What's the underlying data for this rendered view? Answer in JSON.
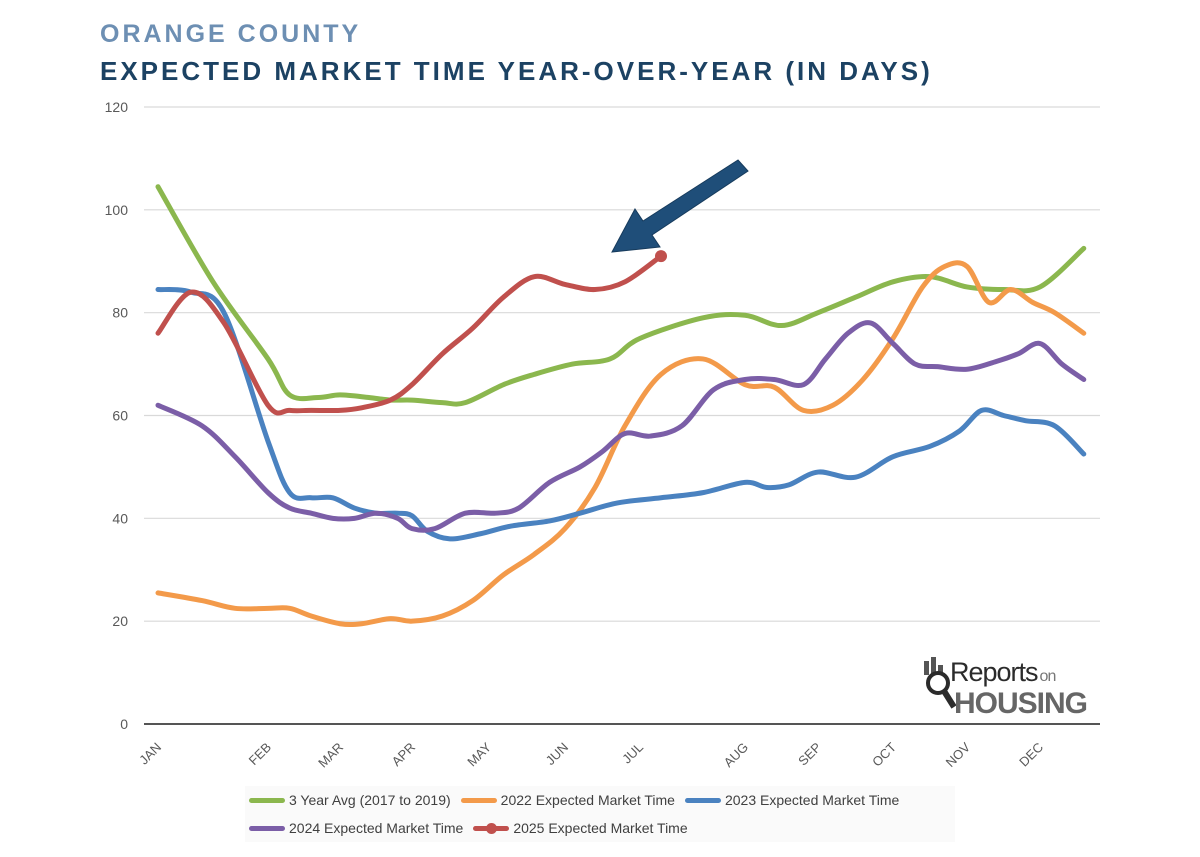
{
  "header": {
    "line1": "ORANGE COUNTY",
    "line2": "EXPECTED MARKET TIME YEAR-OVER-YEAR (IN DAYS)"
  },
  "chart_data": {
    "type": "line",
    "title": "EXPECTED MARKET TIME YEAR-OVER-YEAR (IN DAYS)",
    "xlabel": "",
    "ylabel": "",
    "ylim": [
      0,
      120
    ],
    "yticks": [
      0,
      20,
      40,
      60,
      80,
      100,
      120
    ],
    "grid": true,
    "legend_position": "bottom",
    "categories": [
      "JAN",
      "FEB",
      "MAR",
      "APR",
      "MAY",
      "JUN",
      "JUL",
      "AUG",
      "SEP",
      "OCT",
      "NOV",
      "DEC"
    ],
    "series": [
      {
        "name": "3 Year Avg (2017 to 2019)",
        "color": "#8bb74e",
        "x": [
          0,
          0.5,
          1.0,
          1.3,
          1.7,
          2.0,
          2.4,
          2.7,
          3.0,
          3.4,
          3.7,
          4.2,
          4.6,
          5.1,
          5.6,
          6.0,
          6.6,
          7.0,
          7.5,
          8.0,
          8.5,
          9.0,
          9.5,
          10.0,
          10.5,
          11.0,
          11.6
        ],
        "y": [
          104.5,
          86,
          71,
          64,
          63.5,
          64,
          63.5,
          63,
          63,
          62.5,
          62.5,
          66,
          68,
          70,
          71,
          75,
          79,
          79.5,
          77.5,
          80,
          83,
          86,
          87,
          85,
          84.5,
          85,
          92.5
        ]
      },
      {
        "name": "2022 Expected Market Time",
        "color": "#f39a4a",
        "x": [
          0,
          0.4,
          0.7,
          1.0,
          1.3,
          1.6,
          2.0,
          2.3,
          2.7,
          3.0,
          3.4,
          3.8,
          4.2,
          4.6,
          5.0,
          5.4,
          5.8,
          6.2,
          6.6,
          7.0,
          7.4,
          7.8,
          8.2,
          8.6,
          9.0,
          9.4,
          9.7,
          10.0,
          10.3,
          10.6,
          10.9,
          11.2,
          11.6
        ],
        "y": [
          25.5,
          24,
          22.5,
          22.5,
          22.5,
          21,
          19.5,
          19.5,
          20.5,
          20,
          21,
          24,
          29,
          33,
          38,
          46,
          58,
          68,
          71,
          66,
          65.5,
          61,
          62,
          67,
          75,
          85,
          89,
          89,
          82,
          84.5,
          82,
          80,
          76
        ]
      },
      {
        "name": "2023 Expected Market Time",
        "color": "#4a82c0",
        "x": [
          0,
          0.3,
          0.6,
          1.0,
          1.3,
          1.6,
          1.9,
          2.2,
          2.5,
          2.8,
          3.0,
          3.2,
          3.5,
          3.9,
          4.3,
          4.8,
          5.2,
          5.7,
          6.2,
          6.6,
          7.0,
          7.3,
          7.6,
          8.0,
          8.5,
          9.0,
          9.5,
          9.9,
          10.2,
          10.5,
          10.8,
          11.2,
          11.6
        ],
        "y": [
          84.5,
          84,
          80,
          55,
          45,
          44,
          44,
          42,
          41,
          41,
          40.5,
          37.5,
          36,
          37,
          38.5,
          39.5,
          41,
          43,
          44,
          45,
          47,
          46,
          46.5,
          49,
          48,
          52,
          54,
          57,
          61,
          60,
          59,
          58,
          52.5
        ]
      },
      {
        "name": "2024 Expected Market Time",
        "color": "#7b5ea7",
        "x": [
          0,
          0.4,
          0.7,
          1.0,
          1.3,
          1.6,
          1.9,
          2.2,
          2.5,
          2.8,
          3.0,
          3.3,
          3.7,
          4.1,
          4.4,
          4.8,
          5.2,
          5.5,
          5.8,
          6.1,
          6.4,
          6.7,
          7.0,
          7.4,
          7.8,
          8.1,
          8.4,
          8.7,
          9.0,
          9.3,
          9.6,
          10.0,
          10.4,
          10.7,
          11.0,
          11.3,
          11.6
        ],
        "y": [
          62,
          58,
          52,
          45,
          42,
          41,
          40,
          40,
          41,
          40,
          38,
          38,
          41,
          41,
          42,
          47,
          50,
          53,
          56.5,
          56,
          58,
          65,
          67,
          67,
          66,
          71,
          76,
          78,
          74,
          70,
          69.5,
          69,
          70.5,
          72,
          74,
          70,
          67
        ]
      },
      {
        "name": "2025 Expected Market Time",
        "color": "#c0504d",
        "marker": "end-dot",
        "x": [
          0,
          0.3,
          0.6,
          1.0,
          1.3,
          1.6,
          2.0,
          2.3,
          2.7,
          3.0,
          3.4,
          3.8,
          4.2,
          4.6,
          5.0,
          5.4,
          5.8,
          6.2
        ],
        "y": [
          76,
          84,
          78,
          62,
          61,
          61,
          61,
          61.5,
          63,
          66,
          72,
          77,
          83,
          87,
          85.5,
          84.5,
          86,
          91
        ]
      }
    ]
  },
  "legend": {
    "row1": [
      {
        "label": "3 Year Avg (2017 to 2019)",
        "color": "#8bb74e",
        "marker": false
      },
      {
        "label": "2022 Expected Market Time",
        "color": "#f39a4a",
        "marker": false
      },
      {
        "label": "2023 Expected Market Time",
        "color": "#4a82c0",
        "marker": false
      }
    ],
    "row2": [
      {
        "label": "2024 Expected Market Time",
        "color": "#7b5ea7",
        "marker": false
      },
      {
        "label": "2025 Expected Market Time",
        "color": "#c0504d",
        "marker": true
      }
    ]
  },
  "arrow": {
    "color": "#1f4e79"
  },
  "logo": {
    "word1": "Reports",
    "word2": "on",
    "word3": "HOUSING"
  }
}
